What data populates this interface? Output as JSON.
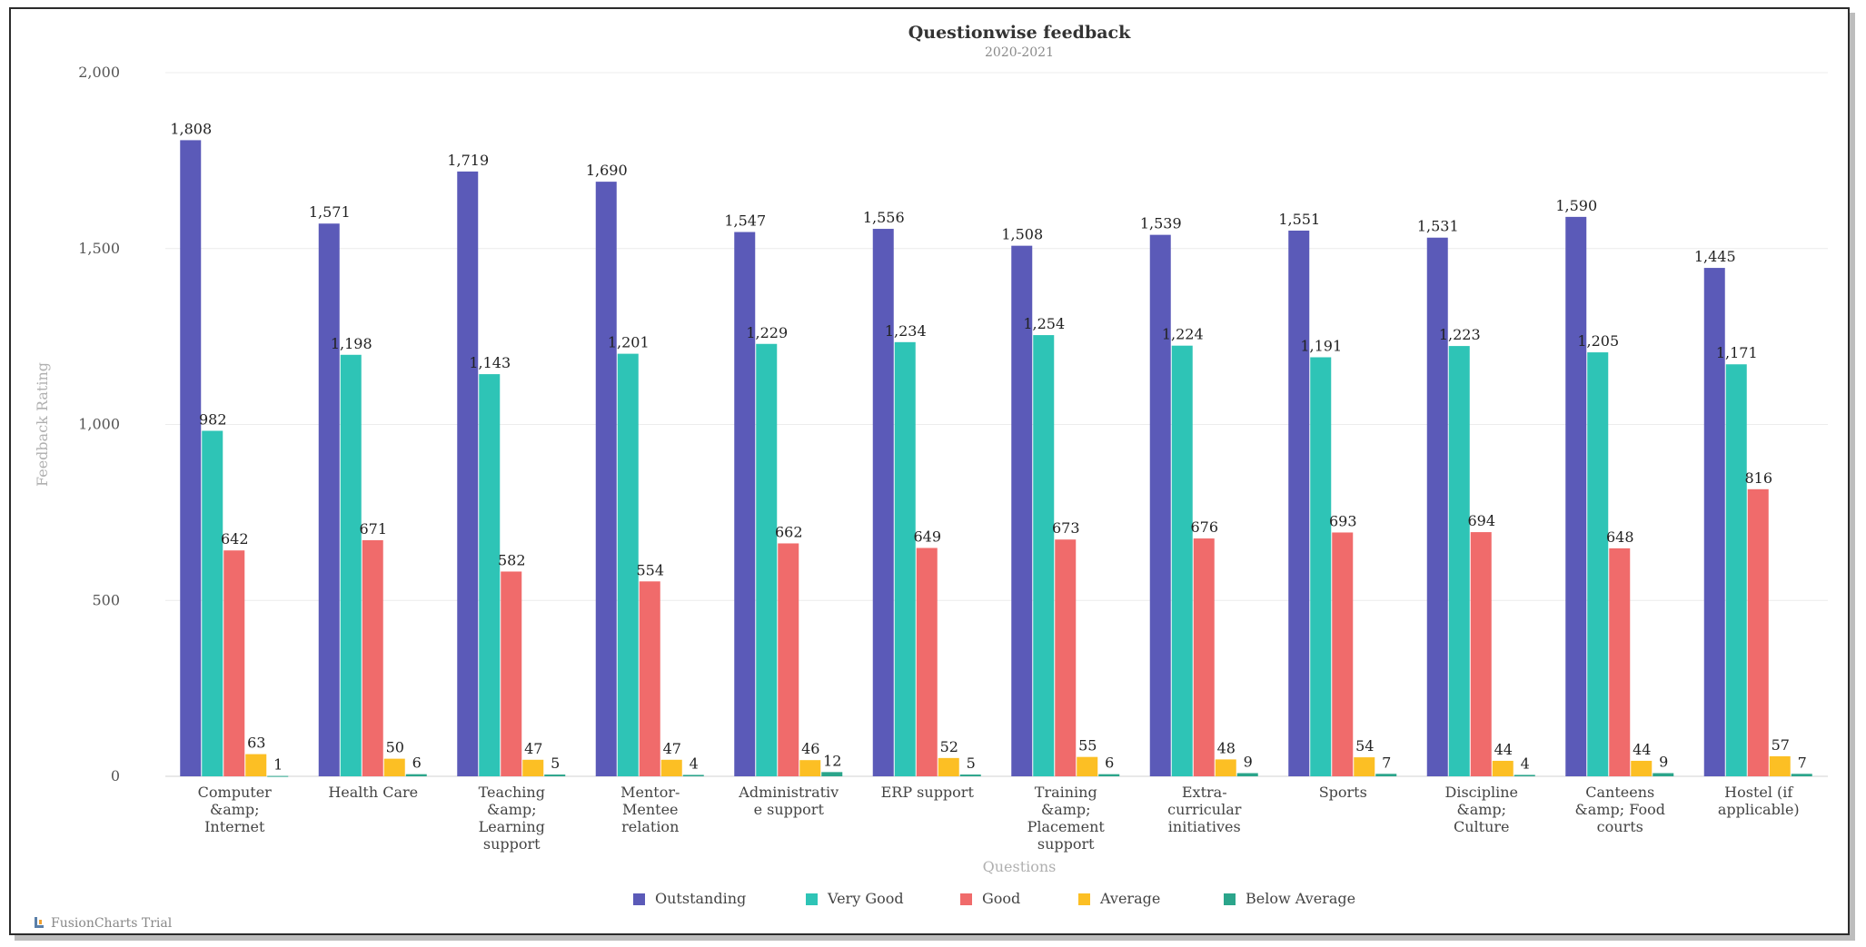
{
  "chart_data": {
    "type": "bar",
    "title": "Questionwise feedback",
    "subtitle": "2020-2021",
    "xlabel": "Questions",
    "ylabel": "Feedback Rating",
    "ylim": [
      0,
      2000
    ],
    "yticks": [
      "0",
      "500",
      "1,000",
      "1,500",
      "2,000"
    ],
    "ytick_values": [
      0,
      500,
      1000,
      1500,
      2000
    ],
    "grid": true,
    "legend_position": "bottom",
    "categories": [
      [
        "Computer",
        "&amp;",
        "Internet"
      ],
      [
        "Health Care"
      ],
      [
        "Teaching",
        "&amp;",
        "Learning",
        "support"
      ],
      [
        "Mentor-",
        "Mentee",
        "relation"
      ],
      [
        "Administrativ",
        "e support"
      ],
      [
        "ERP support"
      ],
      [
        "Training",
        "&amp;",
        "Placement",
        "support"
      ],
      [
        "Extra-",
        "curricular",
        "initiatives"
      ],
      [
        "Sports"
      ],
      [
        "Discipline",
        "&amp;",
        "Culture"
      ],
      [
        "Canteens",
        "&amp; Food",
        "courts"
      ],
      [
        "Hostel (if",
        "applicable)"
      ]
    ],
    "series": [
      {
        "name": "Outstanding",
        "color": "#5b5ab8",
        "values": [
          1808,
          1571,
          1719,
          1690,
          1547,
          1556,
          1508,
          1539,
          1551,
          1531,
          1590,
          1445
        ],
        "labels": [
          "1,808",
          "1,571",
          "1,719",
          "1,690",
          "1,547",
          "1,556",
          "1,508",
          "1,539",
          "1,551",
          "1,531",
          "1,590",
          "1,445"
        ]
      },
      {
        "name": "Very Good",
        "color": "#2ec4b6",
        "values": [
          982,
          1198,
          1143,
          1201,
          1229,
          1234,
          1254,
          1224,
          1191,
          1223,
          1205,
          1171
        ],
        "labels": [
          "982",
          "1,198",
          "1,143",
          "1,201",
          "1,229",
          "1,234",
          "1,254",
          "1,224",
          "1,191",
          "1,223",
          "1,205",
          "1,171"
        ]
      },
      {
        "name": "Good",
        "color": "#f06b6b",
        "values": [
          642,
          671,
          582,
          554,
          662,
          649,
          673,
          676,
          693,
          694,
          648,
          816
        ],
        "labels": [
          "642",
          "671",
          "582",
          "554",
          "662",
          "649",
          "673",
          "676",
          "693",
          "694",
          "648",
          "816"
        ]
      },
      {
        "name": "Average",
        "color": "#fcbf24",
        "values": [
          63,
          50,
          47,
          47,
          46,
          52,
          55,
          48,
          54,
          44,
          44,
          57
        ],
        "labels": [
          "63",
          "50",
          "47",
          "47",
          "46",
          "52",
          "55",
          "48",
          "54",
          "44",
          "44",
          "57"
        ]
      },
      {
        "name": "Below Average",
        "color": "#2ba58b",
        "values": [
          1,
          6,
          5,
          4,
          12,
          5,
          6,
          9,
          7,
          4,
          9,
          7
        ],
        "labels": [
          "1",
          "6",
          "5",
          "4",
          "12",
          "5",
          "6",
          "9",
          "7",
          "4",
          "9",
          "7"
        ]
      }
    ]
  },
  "credit": {
    "text": "FusionCharts Trial",
    "icon": "fusioncharts-logo-icon"
  }
}
